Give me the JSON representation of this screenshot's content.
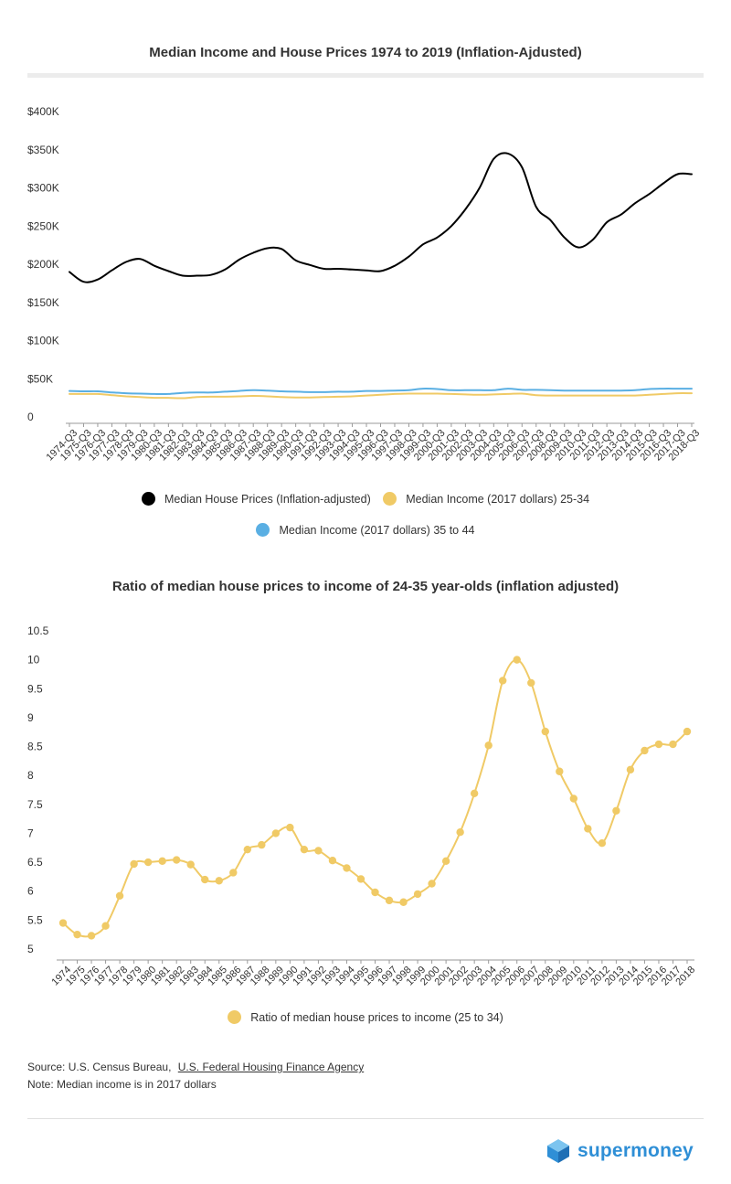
{
  "chart_data": [
    {
      "type": "line",
      "title": "Median Income and House Prices 1974 to 2019 (Inflation-Ajdusted)",
      "xlabel": "",
      "ylabel": "",
      "ylim": [
        0,
        400000
      ],
      "y_ticks": [
        {
          "value": 0,
          "label": "0"
        },
        {
          "value": 50000,
          "label": "$50K"
        },
        {
          "value": 100000,
          "label": "$100K"
        },
        {
          "value": 150000,
          "label": "$150K"
        },
        {
          "value": 200000,
          "label": "$200K"
        },
        {
          "value": 250000,
          "label": "$250K"
        },
        {
          "value": 300000,
          "label": "$300K"
        },
        {
          "value": 350000,
          "label": "$350K"
        },
        {
          "value": 400000,
          "label": "$400K"
        }
      ],
      "categories": [
        "1974-Q3",
        "1975-Q3",
        "1976-Q3",
        "1977-Q3",
        "1978-Q3",
        "1979-Q3",
        "1980-Q3",
        "1981-Q3",
        "1982-Q3",
        "1983-Q3",
        "1984-Q3",
        "1985-Q3",
        "1986-Q3",
        "1987-Q3",
        "1988-Q3",
        "1989-Q3",
        "1990-Q3",
        "1991-Q3",
        "1992-Q3",
        "1993-Q3",
        "1994-Q3",
        "1995-Q3",
        "1996-Q3",
        "1997-Q3",
        "1998-Q3",
        "1999-Q3",
        "2000-Q3",
        "2001-Q3",
        "2002-Q3",
        "2003-Q3",
        "2004-Q3",
        "2005-Q3",
        "2006-Q3",
        "2007-Q3",
        "2008-Q3",
        "2009-Q3",
        "2010-Q3",
        "2011-Q3",
        "2012-Q3",
        "2013-Q3",
        "2014-Q3",
        "2015-Q3",
        "2016-Q3",
        "2017-Q3",
        "2018-Q3"
      ],
      "grid": false,
      "legend_position": "bottom",
      "series": [
        {
          "name": "Median House Prices (Inflation-adjusted)",
          "color": "#000000",
          "values": [
            190000,
            177000,
            180000,
            192000,
            203000,
            207000,
            198000,
            191000,
            185000,
            185000,
            186000,
            193000,
            206000,
            215000,
            221000,
            220000,
            205000,
            199000,
            194000,
            194000,
            193000,
            192000,
            191000,
            198000,
            210000,
            226000,
            235000,
            250000,
            272000,
            300000,
            338000,
            345000,
            327000,
            275000,
            258000,
            235000,
            222000,
            232000,
            255000,
            265000,
            280000,
            292000,
            306000,
            318000,
            318000
          ]
        },
        {
          "name": "Median Income (2017 dollars) 25-34",
          "color": "#f0ca66",
          "values": [
            30000,
            30000,
            30000,
            28500,
            27000,
            26000,
            25000,
            25000,
            24500,
            26000,
            26500,
            26500,
            27000,
            27500,
            27000,
            26000,
            25500,
            25500,
            26000,
            26500,
            27000,
            28000,
            29000,
            30000,
            30500,
            30500,
            30500,
            30000,
            29500,
            29000,
            29500,
            30000,
            30500,
            28500,
            28000,
            28000,
            28000,
            28000,
            28000,
            28000,
            28000,
            29000,
            30000,
            31000,
            31000
          ]
        },
        {
          "name": "Median Income (2017 dollars) 35 to 44",
          "color": "#5aafe3",
          "values": [
            34000,
            33500,
            33500,
            32000,
            31000,
            30500,
            30000,
            30000,
            31500,
            32000,
            32000,
            33000,
            34000,
            35000,
            34500,
            33500,
            33000,
            32500,
            32500,
            33000,
            33000,
            34000,
            34000,
            34500,
            35000,
            37000,
            36500,
            35000,
            35000,
            35000,
            35000,
            37000,
            35500,
            35500,
            35000,
            34500,
            34500,
            34500,
            34500,
            34500,
            35000,
            36500,
            37000,
            37000,
            37000
          ]
        }
      ]
    },
    {
      "type": "line",
      "title": "Ratio of median house prices to income of 24-35 year-olds (inflation adjusted)",
      "xlabel": "",
      "ylabel": "",
      "ylim": [
        5,
        10.5
      ],
      "y_ticks": [
        {
          "value": 5,
          "label": "5"
        },
        {
          "value": 5.5,
          "label": "5.5"
        },
        {
          "value": 6,
          "label": "6"
        },
        {
          "value": 6.5,
          "label": "6.5"
        },
        {
          "value": 7,
          "label": "7"
        },
        {
          "value": 7.5,
          "label": "7.5"
        },
        {
          "value": 8,
          "label": "8"
        },
        {
          "value": 8.5,
          "label": "8.5"
        },
        {
          "value": 9,
          "label": "9"
        },
        {
          "value": 9.5,
          "label": "9.5"
        },
        {
          "value": 10,
          "label": "10"
        },
        {
          "value": 10.5,
          "label": "10.5"
        }
      ],
      "categories": [
        "1974",
        "1975",
        "1976",
        "1977",
        "1978",
        "1979",
        "1980",
        "1981",
        "1982",
        "1983",
        "1984",
        "1985",
        "1986",
        "1987",
        "1988",
        "1989",
        "1990",
        "1991",
        "1992",
        "1993",
        "1994",
        "1995",
        "1996",
        "1997",
        "1998",
        "1999",
        "2000",
        "2001",
        "2002",
        "2003",
        "2004",
        "2005",
        "2006",
        "2007",
        "2008",
        "2009",
        "2010",
        "2011",
        "2012",
        "2013",
        "2014",
        "2015",
        "2016",
        "2017",
        "2018"
      ],
      "grid": false,
      "legend_position": "bottom",
      "series": [
        {
          "name": "Ratio of median house prices to income (25 to 34)",
          "color": "#f0ca66",
          "values": [
            5.45,
            5.25,
            5.23,
            5.4,
            5.92,
            6.47,
            6.5,
            6.52,
            6.54,
            6.46,
            6.2,
            6.18,
            6.32,
            6.72,
            6.8,
            7.0,
            7.1,
            6.72,
            6.7,
            6.53,
            6.4,
            6.21,
            5.98,
            5.84,
            5.81,
            5.95,
            6.13,
            6.52,
            7.02,
            7.69,
            8.52,
            9.64,
            10.0,
            9.6,
            8.76,
            8.07,
            7.6,
            7.08,
            6.83,
            7.39,
            8.1,
            8.43,
            8.54,
            8.54,
            8.76
          ]
        }
      ]
    }
  ],
  "notes": {
    "source_label": "Source: U.S. Census Bureau,",
    "source_link": "U.S. Federal Housing Finance Agency",
    "note": "Note: Median income is in 2017 dollars"
  },
  "brand": {
    "name": "supermoney",
    "color": "#2f8fd6"
  }
}
